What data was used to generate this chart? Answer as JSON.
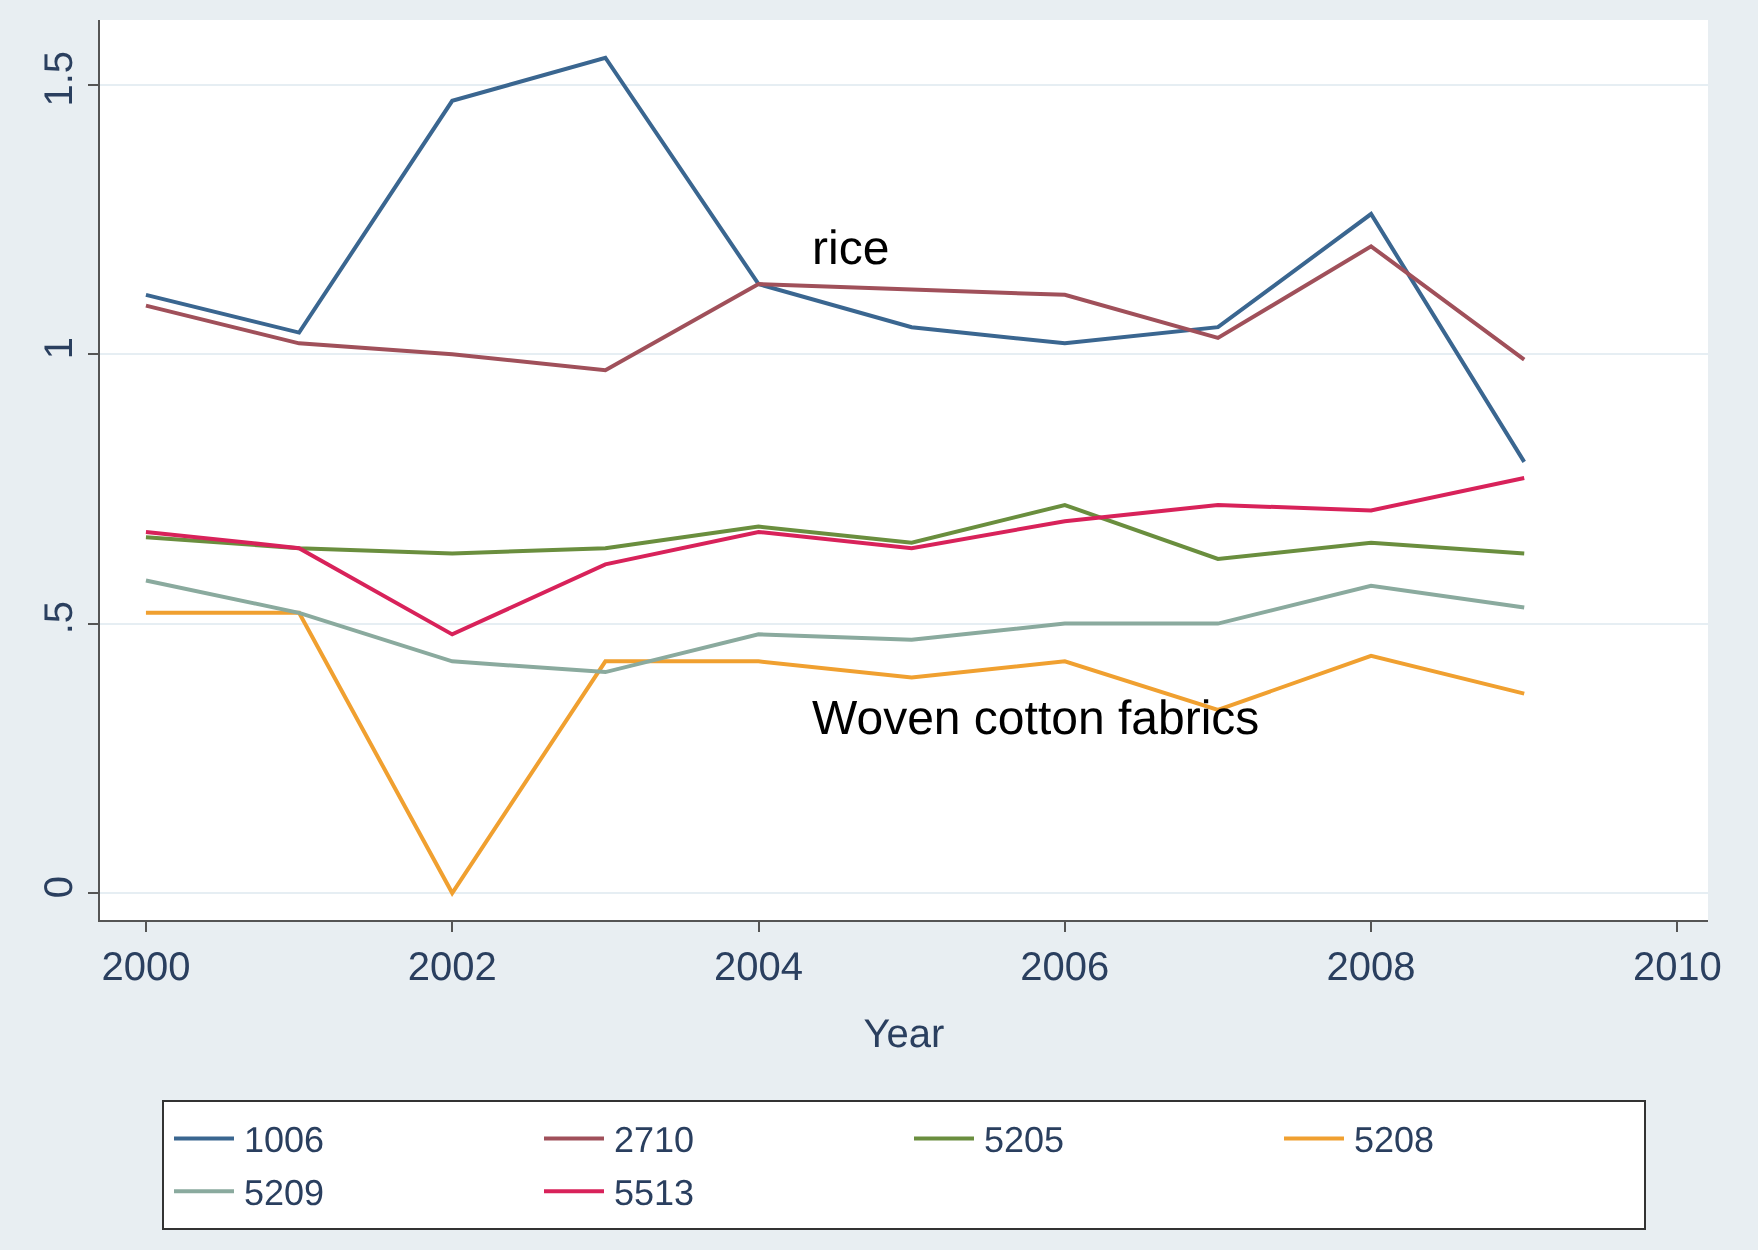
{
  "chart_data": {
    "type": "line",
    "xlabel": "Year",
    "x": [
      2000,
      2001,
      2002,
      2003,
      2004,
      2005,
      2006,
      2007,
      2008,
      2009
    ],
    "xlim": [
      1999.7,
      2010.2
    ],
    "xticks": [
      2000,
      2002,
      2004,
      2006,
      2008,
      2010
    ],
    "ylim": [
      -0.05,
      1.62
    ],
    "yticks": [
      0,
      {
        "value": 0.5,
        "label": ".5"
      },
      1,
      1.5
    ],
    "grid": "y",
    "legend": "bottom",
    "marker": "none",
    "line_style": "solid",
    "series": [
      {
        "name": "1006",
        "color": "#3a6690",
        "values": [
          1.11,
          1.04,
          1.47,
          1.55,
          1.13,
          1.05,
          1.02,
          1.05,
          1.26,
          0.8
        ]
      },
      {
        "name": "2710",
        "color": "#a0505a",
        "values": [
          1.09,
          1.02,
          1.0,
          0.97,
          1.13,
          1.12,
          1.11,
          1.03,
          1.2,
          0.99
        ]
      },
      {
        "name": "5205",
        "color": "#6a8e3e",
        "values": [
          0.66,
          0.64,
          0.63,
          0.64,
          0.68,
          0.65,
          0.72,
          0.62,
          0.65,
          0.63
        ]
      },
      {
        "name": "5208",
        "color": "#f0a030",
        "values": [
          0.52,
          0.52,
          0.0,
          0.43,
          0.43,
          0.4,
          0.43,
          0.34,
          0.44,
          0.37
        ]
      },
      {
        "name": "5209",
        "color": "#8aaa9e",
        "values": [
          0.58,
          0.52,
          0.43,
          0.41,
          0.48,
          0.47,
          0.5,
          0.5,
          0.57,
          0.53
        ]
      },
      {
        "name": "5513",
        "color": "#d8225a",
        "values": [
          0.67,
          0.64,
          0.48,
          0.61,
          0.67,
          0.64,
          0.69,
          0.72,
          0.71,
          0.77
        ]
      }
    ],
    "annotations": [
      "rice",
      "Woven cotton fabrics"
    ]
  }
}
